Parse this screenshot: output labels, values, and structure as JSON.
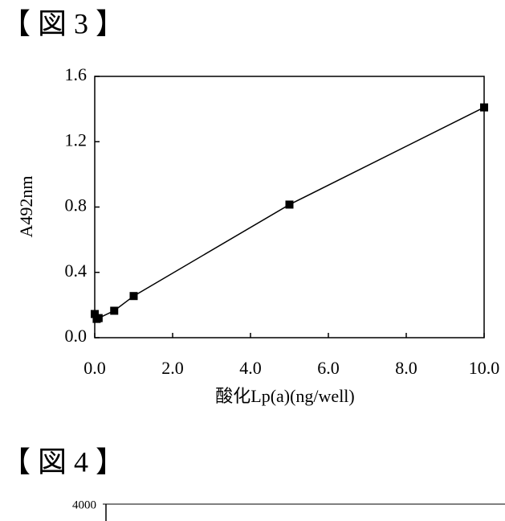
{
  "chart_data": [
    {
      "type": "line",
      "title": "【 図 3 】",
      "x_label": "酸化Lp(a)(ng/well)",
      "y_label": "A492nm",
      "x": [
        0,
        0.05,
        0.1,
        0.5,
        1,
        5,
        10
      ],
      "values": [
        0.145,
        0.115,
        0.12,
        0.165,
        0.255,
        0.815,
        1.41
      ],
      "color": "#000000",
      "marker": "square",
      "xlim": [
        0,
        10
      ],
      "ylim": [
        0,
        1.6
      ],
      "xticks": [
        {
          "value": 0,
          "label": "0.0"
        },
        {
          "value": 2,
          "label": "2.0"
        },
        {
          "value": 4,
          "label": "4.0"
        },
        {
          "value": 6,
          "label": "6.0"
        },
        {
          "value": 8,
          "label": "8.0"
        },
        {
          "value": 10,
          "label": "10.0"
        }
      ],
      "yticks": [
        {
          "value": 0,
          "label": "0.0"
        },
        {
          "value": 0.4,
          "label": "0.4"
        },
        {
          "value": 0.8,
          "label": "0.8"
        },
        {
          "value": 1.2,
          "label": "1.2"
        },
        {
          "value": 1.6,
          "label": "1.6"
        }
      ],
      "grid": false
    },
    {
      "type": "line",
      "title": "【 図 4 】",
      "yticks": [
        4000
      ]
    }
  ]
}
